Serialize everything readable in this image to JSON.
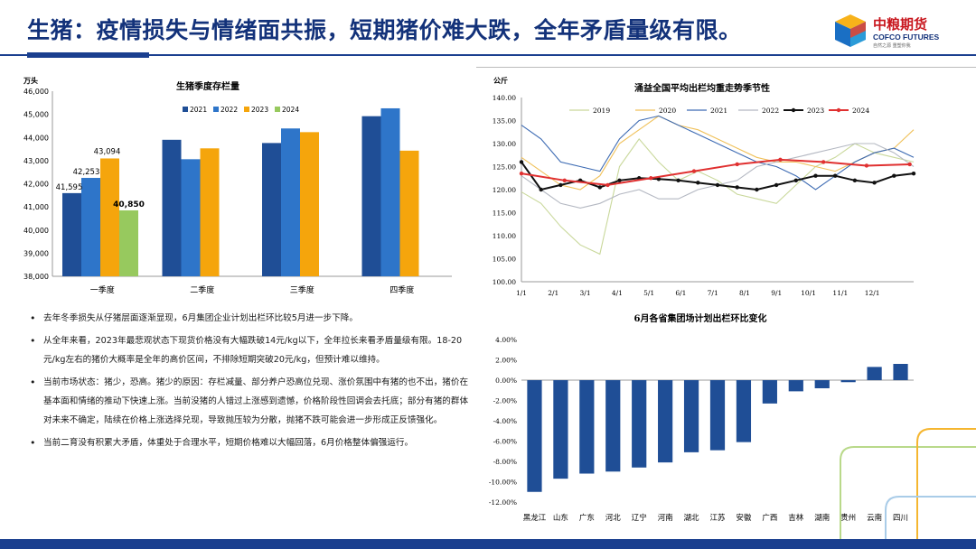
{
  "header": {
    "title": "生猪：疫情损失与情绪面共振，短期猪价难大跌，全年矛盾量级有限。",
    "logo_cn": "中粮期货",
    "logo_en": "COFCO FUTURES",
    "logo_sub": "自然之源  重塑你我",
    "brand_color": "#13327a"
  },
  "chart_data": [
    {
      "type": "bar",
      "title": "生猪季度存栏量",
      "ylabel": "万头",
      "categories": [
        "一季度",
        "二季度",
        "三季度",
        "四季度"
      ],
      "ylim": [
        38000,
        46000
      ],
      "yticks": [
        "38,000",
        "39,000",
        "40,000",
        "41,000",
        "42,000",
        "43,000",
        "44,000",
        "45,000",
        "46,000"
      ],
      "legend_position": "top-center",
      "series": [
        {
          "name": "2021",
          "color": "#1f4e96",
          "values": [
            41595,
            43900,
            43760,
            44920
          ]
        },
        {
          "name": "2022",
          "color": "#2e75c9",
          "values": [
            42253,
            43060,
            44390,
            45260
          ]
        },
        {
          "name": "2023",
          "color": "#f5a50c",
          "values": [
            43094,
            43530,
            44230,
            43430
          ]
        },
        {
          "name": "2024",
          "color": "#97c95e",
          "values": [
            40850,
            null,
            null,
            null
          ]
        }
      ],
      "data_labels": [
        {
          "series": 0,
          "index": 0,
          "text": "41,595"
        },
        {
          "series": 1,
          "index": 0,
          "text": "42,253"
        },
        {
          "series": 2,
          "index": 0,
          "text": "43,094"
        },
        {
          "series": 3,
          "index": 0,
          "text": "40,850"
        }
      ]
    },
    {
      "type": "line",
      "title": "涌益全国平均出栏均重走势季节性",
      "ylabel": "公斤",
      "x_ticks": [
        "1/1",
        "2/1",
        "3/1",
        "4/1",
        "5/1",
        "6/1",
        "7/1",
        "8/1",
        "9/1",
        "10/1",
        "11/1",
        "12/1"
      ],
      "ylim": [
        100,
        140
      ],
      "yticks": [
        "100.00",
        "105.00",
        "110.00",
        "115.00",
        "120.00",
        "125.00",
        "130.00",
        "135.00",
        "140.00"
      ],
      "legend_position": "top",
      "series": [
        {
          "name": "2019",
          "color": "#c9d89b",
          "values": [
            119.5,
            117,
            112,
            108,
            106,
            125,
            131,
            126,
            122,
            124,
            122,
            119,
            118,
            117,
            121,
            125,
            127,
            130,
            128,
            127,
            126
          ]
        },
        {
          "name": "2020",
          "color": "#f0c15a",
          "values": [
            127,
            124,
            121,
            120,
            123,
            130,
            133,
            136,
            134,
            133,
            131,
            129,
            127,
            126,
            126,
            125,
            124,
            126,
            128,
            129,
            133
          ]
        },
        {
          "name": "2021",
          "color": "#3d6bb3",
          "values": [
            134,
            131,
            126,
            125,
            124,
            131,
            135,
            136,
            134,
            132,
            130,
            128,
            126,
            125,
            123,
            120,
            123,
            126,
            128,
            129,
            127
          ]
        },
        {
          "name": "2022",
          "color": "#b4b8c2",
          "values": [
            123,
            120,
            117,
            116,
            117,
            119,
            120,
            118,
            118,
            120,
            121,
            122,
            125,
            126,
            127,
            128,
            129,
            130,
            130,
            128,
            125
          ]
        },
        {
          "name": "2023",
          "color": "#111111",
          "marker": "circle",
          "values": [
            126,
            120,
            121,
            122,
            120.5,
            122,
            122.5,
            122.3,
            122,
            121.5,
            121,
            120.5,
            120,
            121,
            122,
            123,
            123,
            122,
            121.5,
            123,
            123.5
          ]
        },
        {
          "name": "2024",
          "color": "#e03030",
          "marker": "circle",
          "values": [
            123.5,
            122,
            121,
            122.5,
            124,
            125.5,
            126.5,
            126,
            125.2,
            125.5
          ]
        }
      ]
    },
    {
      "type": "bar",
      "title": "6月各省集团场计划出栏环比变化",
      "categories": [
        "黑龙江",
        "山东",
        "广东",
        "河北",
        "辽宁",
        "河南",
        "湖北",
        "江苏",
        "安徽",
        "广西",
        "吉林",
        "湖南",
        "贵州",
        "云南",
        "四川"
      ],
      "values": [
        -0.11,
        -0.097,
        -0.092,
        -0.09,
        -0.086,
        -0.081,
        -0.071,
        -0.069,
        -0.061,
        -0.023,
        -0.011,
        -0.008,
        -0.002,
        0.013,
        0.016
      ],
      "ylim": [
        -0.12,
        0.04
      ],
      "yticks": [
        "-12.00%",
        "-10.00%",
        "-8.00%",
        "-6.00%",
        "-4.00%",
        "-2.00%",
        "0.00%",
        "2.00%",
        "4.00%"
      ],
      "color": "#1f4e96"
    }
  ],
  "bullets": [
    "去年冬季损失从仔猪层面逐渐显现，6月集团企业计划出栏环比较5月进一步下降。",
    "从全年来看，2023年最悲观状态下现货价格没有大幅跌破14元/kg以下，全年拉长来看矛盾量级有限。18-20元/kg左右的猪价大概率是全年的高价区间，不排除短期突破20元/kg，但预计难以维持。",
    "当前市场状态：猪少，恐高。猪少的原因：存栏减量、部分养户恐高位兑现、涨价氛围中有猪的也不出，猪价在基本面和情绪的推动下快速上涨。当前没猪的人错过上涨感到遗憾，价格阶段性回调会去托底；部分有猪的群体对未来不确定，陆续在价格上涨选择兑现，导致抛压较为分散，抛猪不跌可能会进一步形成正反馈强化。",
    "当前二育没有积累大矛盾，体重处于合理水平，短期价格难以大幅回落，6月价格整体偏强运行。"
  ]
}
